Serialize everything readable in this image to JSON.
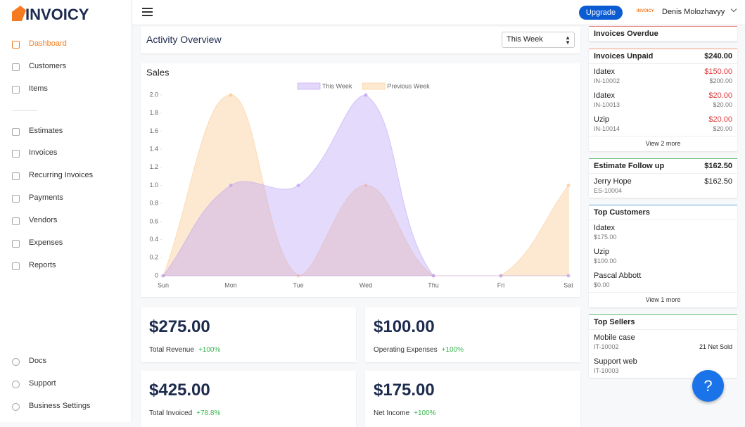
{
  "brand": "INVOICY",
  "nav": [
    "Dashboard",
    "Customers",
    "Items",
    "Estimates",
    "Invoices",
    "Recurring Invoices",
    "Payments",
    "Vendors",
    "Expenses",
    "Reports"
  ],
  "nav_bottom": [
    "Docs",
    "Support",
    "Business Settings"
  ],
  "header": {
    "upgrade": "Upgrade",
    "logo": "INVOICY",
    "user": "Denis Molozhavyy"
  },
  "overview": {
    "title": "Activity Overview",
    "period": "This Week"
  },
  "stats": [
    {
      "value": "$275.00",
      "label": "Total Revenue",
      "change": "+100%"
    },
    {
      "value": "$100.00",
      "label": "Operating Expenses",
      "change": "+100%"
    },
    {
      "value": "$425.00",
      "label": "Total Invoiced",
      "change": "+78.8%"
    },
    {
      "value": "$175.00",
      "label": "Net Income",
      "change": "+100%"
    }
  ],
  "panels": [
    {
      "title": "Invoices Overdue",
      "color": "#e8837a",
      "items": []
    },
    {
      "title": "Invoices Unpaid",
      "amount": "$240.00",
      "color": "#f0a07a",
      "items": [
        {
          "name": "Idatex",
          "sub": "IN-10002",
          "amount": "$150.00",
          "amount2": "$200.00"
        },
        {
          "name": "Idatex",
          "sub": "IN-10013",
          "amount": "$20.00",
          "amount2": "$20.00"
        },
        {
          "name": "Uzip",
          "sub": "IN-10014",
          "amount": "$20.00",
          "amount2": "$20.00"
        }
      ],
      "more": "View 2 more"
    },
    {
      "title": "Estimate Follow up",
      "amount": "$162.50",
      "color": "#6cc07a",
      "items": [
        {
          "name": "Jerry Hope",
          "sub": "ES-10004",
          "amount": "$162.50"
        }
      ]
    },
    {
      "title": "Top Customers",
      "color": "#6aa8e0",
      "items": [
        {
          "name": "Idatex",
          "sub": "$175.00"
        },
        {
          "name": "Uzip",
          "sub": "$100.00"
        },
        {
          "name": "Pascal Abbott",
          "sub": "$0.00"
        }
      ],
      "more": "View 1 more"
    },
    {
      "title": "Top Sellers",
      "color": "#6cc07a",
      "items": [
        {
          "name": "Mobile case",
          "sub": "IT-10002",
          "amount2": "21 Net Sold"
        },
        {
          "name": "Support web",
          "sub": "IT-10003"
        }
      ]
    }
  ],
  "help": "?",
  "chart_data": {
    "type": "area",
    "title": "Sales",
    "categories": [
      "Sun",
      "Mon",
      "Tue",
      "Wed",
      "Thu",
      "Fri",
      "Sat"
    ],
    "series": [
      {
        "name": "This Week",
        "color": "#b89ef5",
        "values": [
          0,
          1,
          1,
          2,
          0,
          0,
          0
        ]
      },
      {
        "name": "Previous Week",
        "color": "#fbc68a",
        "values": [
          0,
          2,
          0,
          1,
          0,
          0,
          1
        ]
      }
    ],
    "ylim": [
      0,
      2
    ],
    "yticks": [
      0,
      0.2,
      0.4,
      0.6,
      0.8,
      {
        "value": 1,
        "label": "1.0"
      },
      1.2,
      1.4,
      1.6,
      1.8,
      {
        "value": 2,
        "label": "2.0"
      }
    ],
    "grid": false,
    "legend": "top"
  }
}
